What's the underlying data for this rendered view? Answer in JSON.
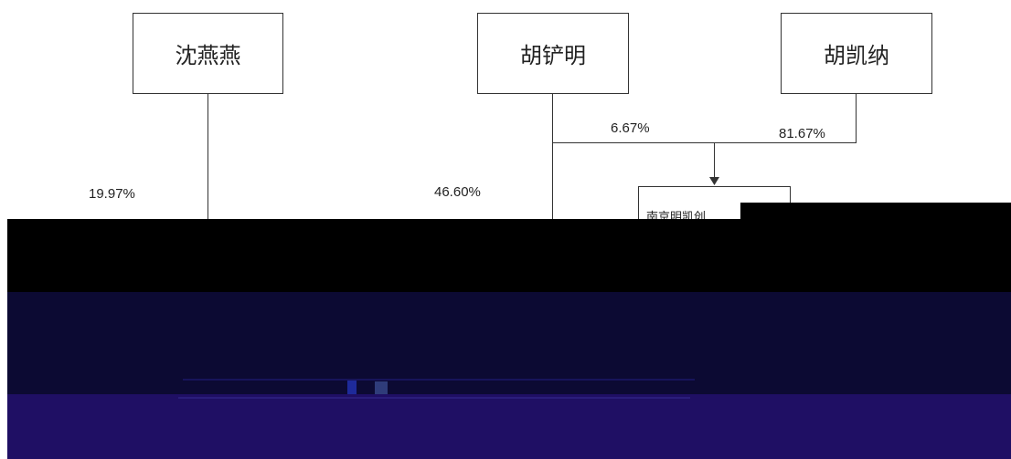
{
  "nodes": {
    "shen": {
      "label": "沈燕燕"
    },
    "hu_chanming": {
      "label": "胡铲明"
    },
    "hu_kaina": {
      "label": "胡凯纳"
    },
    "nanjing": {
      "label": "南京明凯创"
    }
  },
  "edges": {
    "shen_pct": "19.97%",
    "hu_chanming_direct_pct": "46.60%",
    "hu_chanming_to_nanjing_pct": "6.67%",
    "hu_kaina_to_nanjing_pct": "81.67%"
  },
  "colors": {
    "line": "#333333",
    "band_black": "#000000",
    "band_navy": "#0c0a33",
    "band_purple": "#1f0f64"
  }
}
